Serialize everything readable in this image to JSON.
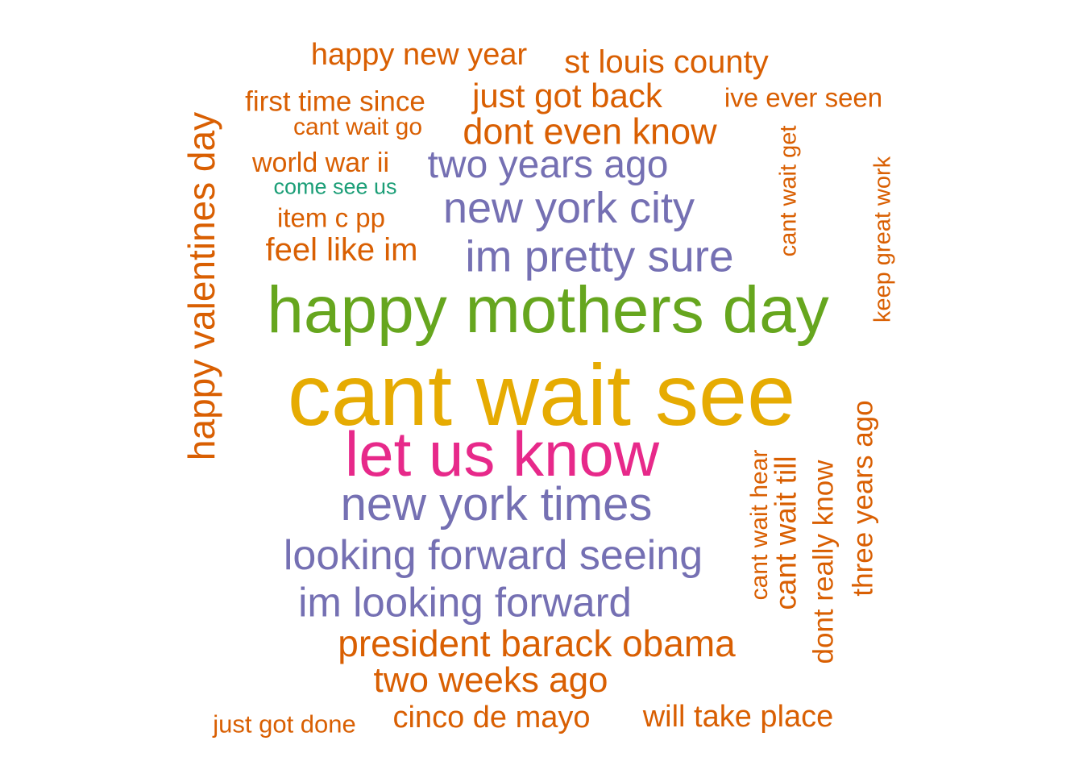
{
  "colors": {
    "orange": "#d95f02",
    "purple": "#7570b3",
    "green": "#66a61e",
    "gold": "#e6ab02",
    "pink": "#e7298a",
    "teal": "#1b9e77"
  },
  "words": [
    {
      "text": "cant wait see",
      "color": "gold",
      "rotated": false
    },
    {
      "text": "happy mothers day",
      "color": "green",
      "rotated": false
    },
    {
      "text": "let us know",
      "color": "pink",
      "rotated": false
    },
    {
      "text": "new york times",
      "color": "purple",
      "rotated": false
    },
    {
      "text": "im pretty sure",
      "color": "purple",
      "rotated": false
    },
    {
      "text": "new york city",
      "color": "purple",
      "rotated": false
    },
    {
      "text": "looking forward seeing",
      "color": "purple",
      "rotated": false
    },
    {
      "text": "im looking forward",
      "color": "purple",
      "rotated": false
    },
    {
      "text": "two years ago",
      "color": "purple",
      "rotated": false
    },
    {
      "text": "dont even know",
      "color": "orange",
      "rotated": false
    },
    {
      "text": "president barack obama",
      "color": "orange",
      "rotated": false
    },
    {
      "text": "two weeks ago",
      "color": "orange",
      "rotated": false
    },
    {
      "text": "just got back",
      "color": "orange",
      "rotated": false
    },
    {
      "text": "st louis county",
      "color": "orange",
      "rotated": false
    },
    {
      "text": "happy new year",
      "color": "orange",
      "rotated": false
    },
    {
      "text": "feel like im",
      "color": "orange",
      "rotated": false
    },
    {
      "text": "cinco de mayo",
      "color": "orange",
      "rotated": false
    },
    {
      "text": "will take place",
      "color": "orange",
      "rotated": false
    },
    {
      "text": "first time since",
      "color": "orange",
      "rotated": false
    },
    {
      "text": "ive ever seen",
      "color": "orange",
      "rotated": false
    },
    {
      "text": "cant wait go",
      "color": "orange",
      "rotated": false
    },
    {
      "text": "world war ii",
      "color": "orange",
      "rotated": false
    },
    {
      "text": "item c pp",
      "color": "orange",
      "rotated": false
    },
    {
      "text": "just got done",
      "color": "orange",
      "rotated": false
    },
    {
      "text": "come see us",
      "color": "teal",
      "rotated": false
    },
    {
      "text": "happy valentines day",
      "color": "orange",
      "rotated": true
    },
    {
      "text": "cant wait get",
      "color": "orange",
      "rotated": true
    },
    {
      "text": "keep great work",
      "color": "orange",
      "rotated": true
    },
    {
      "text": "cant wait hear",
      "color": "orange",
      "rotated": true
    },
    {
      "text": "cant wait till",
      "color": "orange",
      "rotated": true
    },
    {
      "text": "dont really know",
      "color": "orange",
      "rotated": true
    },
    {
      "text": "three years ago",
      "color": "orange",
      "rotated": true
    }
  ]
}
